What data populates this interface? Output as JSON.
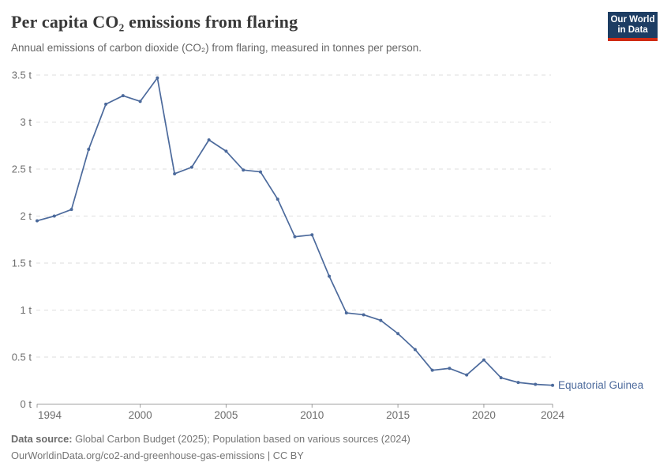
{
  "header": {
    "title": "Per capita CO₂ emissions from flaring",
    "subtitle": "Annual emissions of carbon dioxide (CO₂) from flaring, measured in tonnes per person.",
    "logo": {
      "line1": "Our World",
      "line2": "in Data"
    }
  },
  "chart_data": {
    "type": "line",
    "title": "Per capita CO₂ emissions from flaring",
    "unit": "tonnes per person",
    "xlim": [
      1994,
      2024
    ],
    "ylim": [
      0,
      3.5
    ],
    "grid": "horizontal-dashed",
    "legend_position": "label-at-line-end",
    "x_ticks": [
      1994,
      2000,
      2005,
      2010,
      2015,
      2020,
      2024
    ],
    "x_tick_labels": [
      "1994",
      "2000",
      "2005",
      "2010",
      "2015",
      "2020",
      "2024"
    ],
    "y_ticks": [
      0,
      0.5,
      1,
      1.5,
      2,
      2.5,
      3,
      3.5
    ],
    "y_tick_labels": [
      "0 t",
      "0.5 t",
      "1 t",
      "1.5 t",
      "2 t",
      "2.5 t",
      "3 t",
      "3.5 t"
    ],
    "series": [
      {
        "name": "Equatorial Guinea",
        "color": "#4C6A9C",
        "x": [
          1994,
          1995,
          1996,
          1997,
          1998,
          1999,
          2000,
          2001,
          2002,
          2003,
          2004,
          2005,
          2006,
          2007,
          2008,
          2009,
          2010,
          2011,
          2012,
          2013,
          2014,
          2015,
          2016,
          2017,
          2018,
          2019,
          2020,
          2021,
          2022,
          2023,
          2024
        ],
        "values": [
          1.95,
          2.0,
          2.07,
          2.71,
          3.19,
          3.28,
          3.22,
          3.47,
          2.45,
          2.52,
          2.81,
          2.69,
          2.49,
          2.47,
          2.18,
          1.78,
          1.8,
          1.36,
          0.97,
          0.95,
          0.89,
          0.75,
          0.58,
          0.36,
          0.38,
          0.31,
          0.47,
          0.28,
          0.23,
          0.21,
          0.2
        ]
      }
    ]
  },
  "footer": {
    "datasource_label": "Data source:",
    "datasource_text": " Global Carbon Budget (2025); Population based on various sources (2024)",
    "url_line": "OurWorldinData.org/co2-and-greenhouse-gas-emissions | CC BY"
  },
  "colors": {
    "accent": "#4C6A9C",
    "grid": "#dedede",
    "axis": "#9e9e9e",
    "tick_text": "#6e6e6e",
    "logo_bg": "#1d3d63",
    "logo_bar": "#cf2b13"
  }
}
